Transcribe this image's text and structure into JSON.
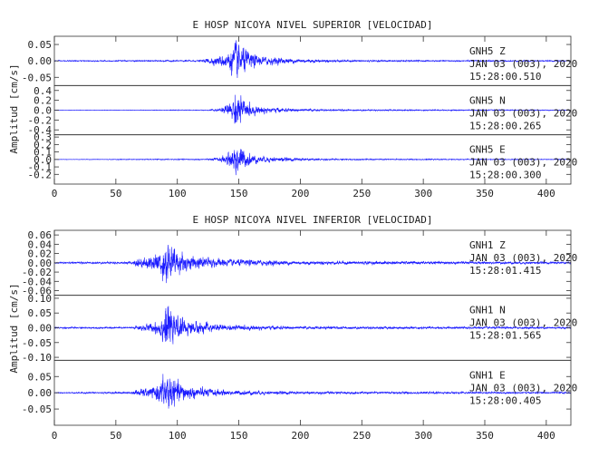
{
  "chart_data": [
    {
      "type": "line",
      "title": "E HOSP NICOYA NIVEL SUPERIOR [VELOCIDAD]",
      "ylabel": "Amplitud [cm/s]",
      "xlim": [
        0,
        420
      ],
      "x_ticks": [
        0,
        50,
        100,
        150,
        200,
        250,
        300,
        350,
        400
      ],
      "x_tick_labels": [
        "0",
        "50",
        "100",
        "150",
        "200",
        "250",
        "300",
        "350",
        "400"
      ],
      "grid": false,
      "line_color": "#1a1aff",
      "traces": [
        {
          "station": "GNH5",
          "component": "Z",
          "date": "JAN 03 (003), 2020",
          "time": "15:28:00.510",
          "ylim": [
            -0.075,
            0.075
          ],
          "y_ticks": [
            -0.05,
            0.0,
            0.05
          ],
          "y_tick_labels": [
            "-0.05",
            "0.00",
            "0.05"
          ],
          "envelope": [
            [
              0,
              0.002
            ],
            [
              120,
              0.003
            ],
            [
              125,
              0.012
            ],
            [
              135,
              0.02
            ],
            [
              143,
              0.04
            ],
            [
              148,
              0.08
            ],
            [
              155,
              0.045
            ],
            [
              165,
              0.02
            ],
            [
              190,
              0.01
            ],
            [
              220,
              0.005
            ],
            [
              260,
              0.003
            ],
            [
              420,
              0.002
            ]
          ]
        },
        {
          "station": "GNH5",
          "component": "N",
          "date": "JAN 03 (003), 2020",
          "time": "15:28:00.265",
          "ylim": [
            -0.5,
            0.5
          ],
          "y_ticks": [
            -0.4,
            -0.2,
            0.0,
            0.2,
            0.4
          ],
          "y_tick_labels": [
            "-0.4",
            "-0.2",
            "0.0",
            "0.2",
            "0.4"
          ],
          "envelope": [
            [
              0,
              0.005
            ],
            [
              125,
              0.01
            ],
            [
              135,
              0.05
            ],
            [
              143,
              0.2
            ],
            [
              148,
              0.48
            ],
            [
              155,
              0.22
            ],
            [
              165,
              0.1
            ],
            [
              185,
              0.05
            ],
            [
              220,
              0.02
            ],
            [
              420,
              0.01
            ]
          ]
        },
        {
          "station": "GNH5",
          "component": "E",
          "date": "JAN 03 (003), 2020",
          "time": "15:28:00.300",
          "ylim": [
            -0.33,
            0.33
          ],
          "y_ticks": [
            -0.2,
            -0.1,
            0.0,
            0.1,
            0.2,
            0.3
          ],
          "y_tick_labels": [
            "-0.2",
            "-0.1",
            "0.0",
            "0.1",
            "0.2",
            "0.3"
          ],
          "envelope": [
            [
              0,
              0.003
            ],
            [
              125,
              0.01
            ],
            [
              135,
              0.04
            ],
            [
              143,
              0.13
            ],
            [
              148,
              0.32
            ],
            [
              155,
              0.14
            ],
            [
              165,
              0.06
            ],
            [
              190,
              0.03
            ],
            [
              220,
              0.012
            ],
            [
              420,
              0.005
            ]
          ]
        }
      ]
    },
    {
      "type": "line",
      "title": "E HOSP NICOYA NIVEL INFERIOR [VELOCIDAD]",
      "ylabel": "Amplitud [cm/s]",
      "xlim": [
        0,
        420
      ],
      "x_ticks": [
        0,
        50,
        100,
        150,
        200,
        250,
        300,
        350,
        400
      ],
      "x_tick_labels": [
        "0",
        "50",
        "100",
        "150",
        "200",
        "250",
        "300",
        "350",
        "400"
      ],
      "grid": false,
      "line_color": "#1a1aff",
      "traces": [
        {
          "station": "GNH1",
          "component": "Z",
          "date": "JAN 03 (003), 2020",
          "time": "15:28:01.415",
          "ylim": [
            -0.07,
            0.07
          ],
          "y_ticks": [
            -0.06,
            -0.04,
            -0.02,
            0.0,
            0.02,
            0.04,
            0.06
          ],
          "y_tick_labels": [
            "-0.06",
            "-0.04",
            "-0.02",
            "0.00",
            "0.02",
            "0.04",
            "0.06"
          ],
          "envelope": [
            [
              0,
              0.002
            ],
            [
              64,
              0.003
            ],
            [
              66,
              0.012
            ],
            [
              80,
              0.02
            ],
            [
              87,
              0.04
            ],
            [
              92,
              0.065
            ],
            [
              97,
              0.04
            ],
            [
              110,
              0.02
            ],
            [
              140,
              0.01
            ],
            [
              200,
              0.005
            ],
            [
              420,
              0.003
            ]
          ]
        },
        {
          "station": "GNH1",
          "component": "N",
          "date": "JAN 03 (003), 2020",
          "time": "15:28:01.565",
          "ylim": [
            -0.11,
            0.11
          ],
          "y_ticks": [
            -0.1,
            -0.05,
            0.0,
            0.05,
            0.1
          ],
          "y_tick_labels": [
            "-0.10",
            "-0.05",
            "0.00",
            "0.05",
            "0.10"
          ],
          "envelope": [
            [
              0,
              0.003
            ],
            [
              64,
              0.004
            ],
            [
              66,
              0.01
            ],
            [
              80,
              0.02
            ],
            [
              87,
              0.05
            ],
            [
              92,
              0.105
            ],
            [
              97,
              0.05
            ],
            [
              110,
              0.03
            ],
            [
              140,
              0.012
            ],
            [
              200,
              0.006
            ],
            [
              420,
              0.004
            ]
          ]
        },
        {
          "station": "GNH1",
          "component": "E",
          "date": "JAN 03 (003), 2020",
          "time": "15:28:00.405",
          "ylim": [
            -0.1,
            0.1
          ],
          "y_ticks": [
            -0.05,
            0.0,
            0.05
          ],
          "y_tick_labels": [
            "-0.05",
            "0.00",
            "0.05"
          ],
          "envelope": [
            [
              0,
              0.002
            ],
            [
              64,
              0.004
            ],
            [
              66,
              0.012
            ],
            [
              80,
              0.02
            ],
            [
              87,
              0.05
            ],
            [
              92,
              0.095
            ],
            [
              97,
              0.05
            ],
            [
              110,
              0.025
            ],
            [
              140,
              0.01
            ],
            [
              200,
              0.005
            ],
            [
              420,
              0.003
            ]
          ]
        }
      ]
    }
  ]
}
